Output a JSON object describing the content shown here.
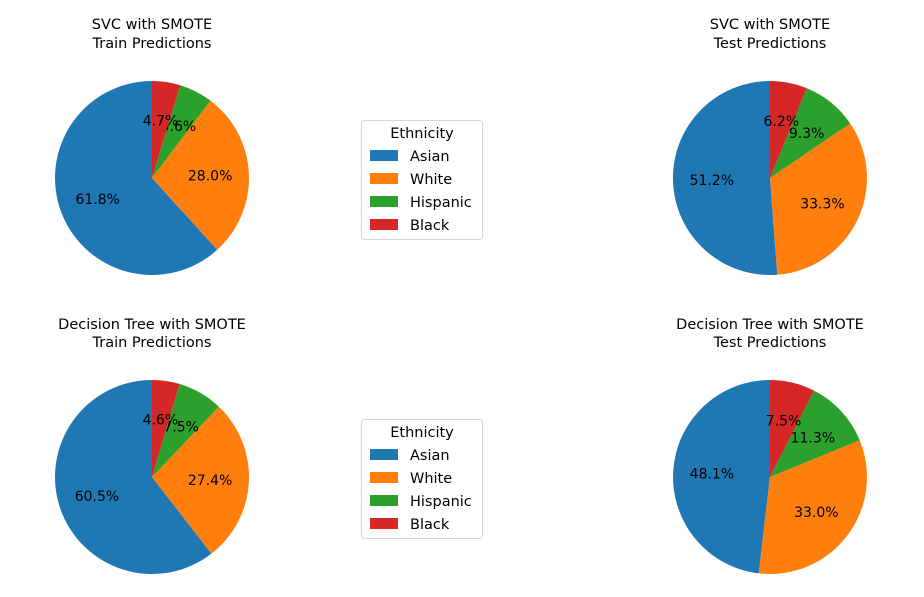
{
  "legend": {
    "title": "Ethnicity",
    "entries": [
      "Asian",
      "White",
      "Hispanic",
      "Black"
    ]
  },
  "colors": {
    "Asian": "#1f77b4",
    "White": "#ff7f0e",
    "Hispanic": "#2ca02c",
    "Black": "#d62728"
  },
  "chart_data": [
    {
      "type": "pie",
      "title": [
        "SVC with SMOTE",
        "Train Predictions"
      ],
      "labels": [
        "Asian",
        "White",
        "Hispanic",
        "Black"
      ],
      "values": [
        61.8,
        28.0,
        5.6,
        4.7
      ],
      "pct_labels": [
        "61.8%",
        "28.0%",
        "5.6%",
        "4.7%"
      ]
    },
    {
      "type": "pie",
      "title": [
        "SVC with SMOTE",
        "Test Predictions"
      ],
      "labels": [
        "Asian",
        "White",
        "Hispanic",
        "Black"
      ],
      "values": [
        51.2,
        33.3,
        9.3,
        6.2
      ],
      "pct_labels": [
        "51.2%",
        "33.3%",
        "9.3%",
        "6.2%"
      ]
    },
    {
      "type": "pie",
      "title": [
        "Decision Tree with SMOTE",
        "Train Predictions"
      ],
      "labels": [
        "Asian",
        "White",
        "Hispanic",
        "Black"
      ],
      "values": [
        60.5,
        27.4,
        7.5,
        4.6
      ],
      "pct_labels": [
        "60.5%",
        "27.4%",
        "7.5%",
        "4.6%"
      ]
    },
    {
      "type": "pie",
      "title": [
        "Decision Tree with SMOTE",
        "Test Predictions"
      ],
      "labels": [
        "Asian",
        "White",
        "Hispanic",
        "Black"
      ],
      "values": [
        48.1,
        33.0,
        11.3,
        7.5
      ],
      "pct_labels": [
        "48.1%",
        "33.0%",
        "11.3%",
        "7.5%"
      ]
    }
  ]
}
